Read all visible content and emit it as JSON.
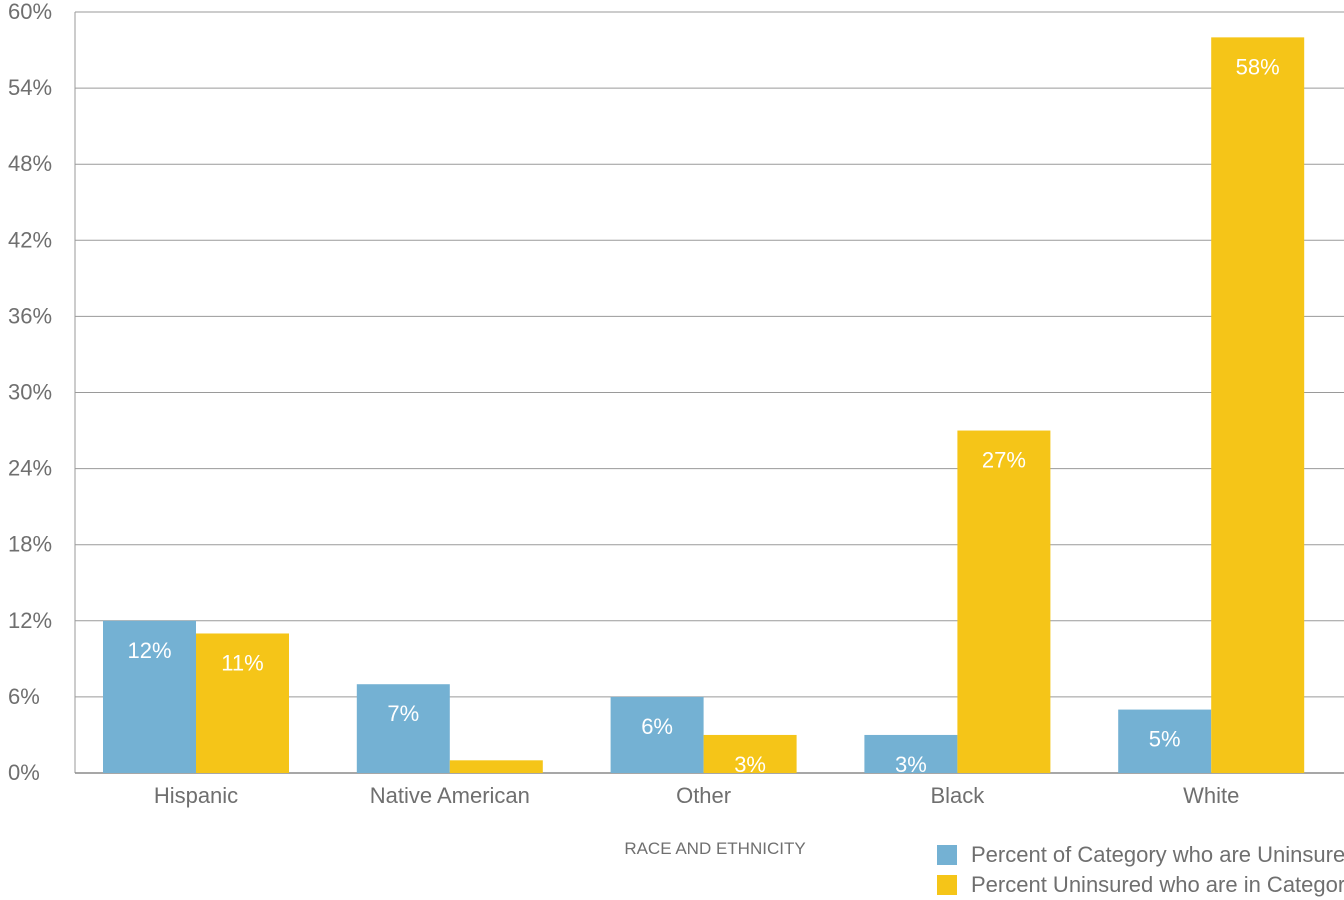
{
  "chart_data": {
    "type": "bar",
    "categories": [
      "Hispanic",
      "Native American",
      "Other",
      "Black",
      "White"
    ],
    "series": [
      {
        "name": "Percent of Category who are Uninsured",
        "color": "#74b1d3",
        "values": [
          12,
          7,
          6,
          3,
          5
        ],
        "labels": [
          "12%",
          "7%",
          "6%",
          "3%",
          "5%"
        ]
      },
      {
        "name": "Percent Uninsured who are in Category",
        "color": "#f5c518",
        "values": [
          11,
          1,
          3,
          27,
          58
        ],
        "labels": [
          "11%",
          "1%",
          "3%",
          "27%",
          "58%"
        ]
      }
    ],
    "xlabel": "RACE AND ETHNICITY",
    "ylabel": "",
    "ylim": [
      0,
      60
    ],
    "yticks": [
      0,
      6,
      12,
      18,
      24,
      30,
      36,
      42,
      48,
      54,
      60
    ],
    "ytick_labels": [
      "0%",
      "6%",
      "12%",
      "18%",
      "24%",
      "30%",
      "36%",
      "42%",
      "48%",
      "54%",
      "60%"
    ],
    "grid": true,
    "legend_position": "bottom-right"
  }
}
